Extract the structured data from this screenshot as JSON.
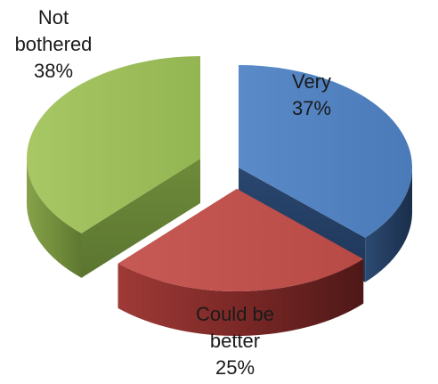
{
  "chart_data": {
    "type": "pie",
    "style": "3d-exploded",
    "categories": [
      "Very",
      "Could be better",
      "Not bothered"
    ],
    "values": [
      37,
      25,
      38
    ],
    "unit": "%",
    "colors": {
      "Very": "#4F81BD",
      "Could be better": "#C0504D",
      "Not bothered": "#9BBB59"
    },
    "labels": [
      {
        "category": "Very",
        "lines": [
          "Very",
          "37%"
        ]
      },
      {
        "category": "Could be better",
        "lines": [
          "Could be",
          "better",
          "25%"
        ]
      },
      {
        "category": "Not bothered",
        "lines": [
          "Not",
          "bothered",
          "38%"
        ]
      }
    ],
    "legend": "none",
    "grid": false
  }
}
